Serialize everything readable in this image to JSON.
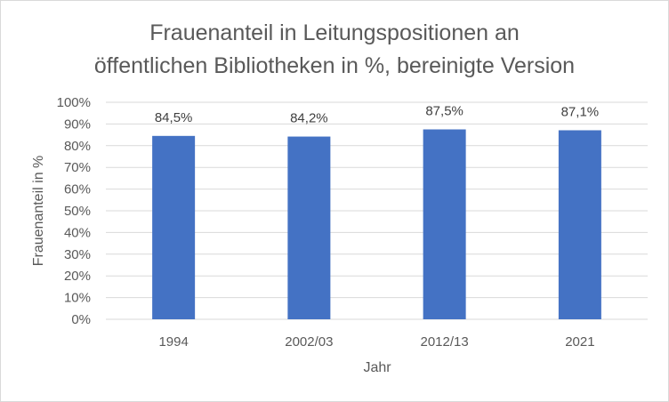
{
  "chart_data": {
    "type": "bar",
    "title_lines": [
      "Frauenanteil in Leitungspositionen an",
      "öffentlichen Bibliotheken in %, bereinigte Version"
    ],
    "xlabel": "Jahr",
    "ylabel": "Frauenanteil in %",
    "categories": [
      "1994",
      "2002/03",
      "2012/13",
      "2021"
    ],
    "values": [
      84.5,
      84.2,
      87.5,
      87.1
    ],
    "data_labels": [
      "84,5%",
      "84,2%",
      "87,5%",
      "87,1%"
    ],
    "ylim": [
      0,
      100
    ],
    "y_ticks": [
      0,
      10,
      20,
      30,
      40,
      50,
      60,
      70,
      80,
      90,
      100
    ],
    "y_tick_labels": [
      "0%",
      "10%",
      "20%",
      "30%",
      "40%",
      "50%",
      "60%",
      "70%",
      "80%",
      "90%",
      "100%"
    ],
    "grid": true,
    "legend": "none",
    "colors": {
      "bar": "#4472c4",
      "grid": "#d9d9d9",
      "text": "#595959"
    }
  }
}
